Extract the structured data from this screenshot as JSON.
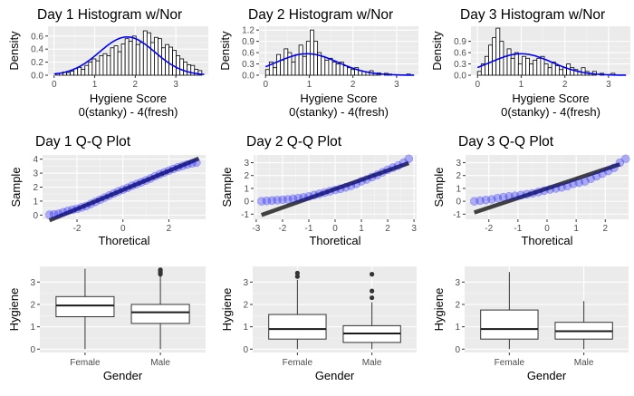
{
  "chart_data": [
    {
      "id": "hist1",
      "type": "bar",
      "title": "Day 1 Histogram w/Nor",
      "xlabel": "Hygiene Score",
      "xlabel2": "0(stanky) - 4(fresh)",
      "ylabel": "Density",
      "xlim": [
        -0.15,
        3.8
      ],
      "ylim": [
        0,
        0.75
      ],
      "xticks": [
        0,
        1,
        2,
        3
      ],
      "yticks": [
        0.0,
        0.2,
        0.4,
        0.6
      ],
      "xticklabels": [
        "0",
        "1",
        "2",
        "3"
      ],
      "yticklabels": [
        "0.0",
        "0.2",
        "0.4",
        "0.6"
      ],
      "bin_start": 0.04,
      "bin_width": 0.09,
      "values": [
        0.03,
        0.03,
        0.05,
        0.04,
        0.06,
        0.1,
        0.12,
        0.09,
        0.15,
        0.2,
        0.25,
        0.22,
        0.3,
        0.33,
        0.3,
        0.42,
        0.45,
        0.36,
        0.48,
        0.56,
        0.52,
        0.6,
        0.47,
        0.5,
        0.68,
        0.65,
        0.5,
        0.58,
        0.56,
        0.42,
        0.47,
        0.43,
        0.38,
        0.3,
        0.25,
        0.2,
        0.16,
        0.15,
        0.09,
        0.07
      ],
      "normal": {
        "mean": 1.8,
        "sd": 0.68
      },
      "curve_color": "#0000ff"
    },
    {
      "id": "hist2",
      "type": "bar",
      "title": "Day 2 Histogram w/Nor",
      "xlabel": "Hygiene Score",
      "xlabel2": "0(stanky) - 4(fresh)",
      "ylabel": "Density",
      "xlim": [
        -0.15,
        3.5
      ],
      "ylim": [
        0,
        1.3
      ],
      "xticks": [
        0,
        1,
        2,
        3
      ],
      "yticks": [
        0.0,
        0.3,
        0.6,
        0.9,
        1.2
      ],
      "xticklabels": [
        "0",
        "1",
        "2",
        "3"
      ],
      "yticklabels": [
        "0.0",
        "0.3",
        "0.6",
        "0.9",
        "1.2"
      ],
      "bin_start": 0.0,
      "bin_width": 0.085,
      "values": [
        0.15,
        0.35,
        0.2,
        0.55,
        0.4,
        0.7,
        0.6,
        0.35,
        0.55,
        0.8,
        0.5,
        0.9,
        1.2,
        0.9,
        0.6,
        0.5,
        0.4,
        0.45,
        0.35,
        0.3,
        0.35,
        0.25,
        0.2,
        0.15,
        0.2,
        0.12,
        0.1,
        0.08,
        0.12,
        0.05,
        0.06,
        0.0,
        0.05,
        0.03,
        0.0,
        0.0,
        0.0,
        0.0,
        0.03,
        0.0
      ],
      "normal": {
        "mean": 0.95,
        "sd": 0.7
      },
      "curve_color": "#0000ff"
    },
    {
      "id": "hist3",
      "type": "bar",
      "title": "Day 3 Histogram w/Nor",
      "xlabel": "Hygiene Score",
      "xlabel2": "0(stanky) - 4(fresh)",
      "ylabel": "Density",
      "xlim": [
        -0.15,
        3.5
      ],
      "ylim": [
        0,
        1.3
      ],
      "xticks": [
        0,
        1,
        2,
        3
      ],
      "yticks": [
        0.0,
        0.3,
        0.6,
        0.9
      ],
      "xticklabels": [
        "0",
        "1",
        "2",
        "3"
      ],
      "yticklabels": [
        "0.0",
        "0.3",
        "0.6",
        "0.9"
      ],
      "bin_start": 0.0,
      "bin_width": 0.085,
      "values": [
        0.1,
        0.3,
        0.5,
        0.8,
        1.0,
        1.25,
        0.9,
        0.5,
        0.7,
        0.45,
        0.6,
        0.3,
        0.5,
        0.45,
        0.3,
        0.4,
        0.45,
        0.5,
        0.3,
        0.2,
        0.35,
        0.25,
        0.15,
        0.2,
        0.3,
        0.2,
        0.15,
        0.1,
        0.2,
        0.1,
        0.05,
        0.1,
        0.0,
        0.05,
        0.0,
        0.0,
        0.05,
        0.0
      ],
      "normal": {
        "mean": 1.0,
        "sd": 0.7
      },
      "curve_color": "#0000ff"
    },
    {
      "id": "qq1",
      "type": "scatter",
      "title": "Day 1 Q-Q Plot",
      "xlabel": "Thoretical",
      "ylabel": "Sample",
      "xlim": [
        -3.5,
        3.6
      ],
      "ylim": [
        -0.3,
        4.3
      ],
      "xticks": [
        -2,
        0,
        2
      ],
      "yticks": [
        0,
        1,
        2,
        3,
        4
      ],
      "xticklabels": [
        "-2",
        "0",
        "2"
      ],
      "yticklabels": [
        "0",
        "1",
        "2",
        "3",
        "4"
      ],
      "line": {
        "intercept": 1.8,
        "slope": 0.68
      },
      "points": [
        [
          -3.2,
          0.02
        ],
        [
          -3.0,
          0.05
        ],
        [
          -2.8,
          0.1
        ],
        [
          -2.6,
          0.2
        ],
        [
          -2.4,
          0.3
        ],
        [
          -2.2,
          0.38
        ],
        [
          -2.0,
          0.45
        ],
        [
          -1.8,
          0.55
        ],
        [
          -1.6,
          0.65
        ],
        [
          -1.4,
          0.8
        ],
        [
          -1.2,
          0.95
        ],
        [
          -1.0,
          1.1
        ],
        [
          -0.8,
          1.25
        ],
        [
          -0.6,
          1.4
        ],
        [
          -0.4,
          1.55
        ],
        [
          -0.2,
          1.7
        ],
        [
          0.0,
          1.82
        ],
        [
          0.2,
          1.95
        ],
        [
          0.4,
          2.1
        ],
        [
          0.6,
          2.22
        ],
        [
          0.8,
          2.35
        ],
        [
          1.0,
          2.48
        ],
        [
          1.2,
          2.62
        ],
        [
          1.4,
          2.78
        ],
        [
          1.6,
          2.92
        ],
        [
          1.8,
          3.05
        ],
        [
          2.0,
          3.18
        ],
        [
          2.2,
          3.3
        ],
        [
          2.4,
          3.42
        ],
        [
          2.6,
          3.52
        ],
        [
          2.8,
          3.62
        ],
        [
          3.0,
          3.7
        ],
        [
          3.2,
          3.75
        ]
      ],
      "point_color": "#0000ff"
    },
    {
      "id": "qq2",
      "type": "scatter",
      "title": "Day 2 Q-Q Plot",
      "xlabel": "Thoretical",
      "ylabel": "Sample",
      "xlim": [
        -3.1,
        3.1
      ],
      "ylim": [
        -1.4,
        3.6
      ],
      "xticks": [
        -3,
        -2,
        -1,
        0,
        1,
        2,
        3
      ],
      "yticks": [
        -1,
        0,
        1,
        2,
        3
      ],
      "xticklabels": [
        "-3",
        "-2",
        "-1",
        "0",
        "1",
        "2",
        "3"
      ],
      "yticklabels": [
        "-1",
        "0",
        "1",
        "2",
        "3"
      ],
      "line": {
        "intercept": 0.95,
        "slope": 0.72
      },
      "points": [
        [
          -2.8,
          0.0
        ],
        [
          -2.6,
          0.03
        ],
        [
          -2.4,
          0.06
        ],
        [
          -2.2,
          0.09
        ],
        [
          -2.0,
          0.12
        ],
        [
          -1.8,
          0.15
        ],
        [
          -1.6,
          0.2
        ],
        [
          -1.4,
          0.25
        ],
        [
          -1.2,
          0.3
        ],
        [
          -1.0,
          0.38
        ],
        [
          -0.8,
          0.48
        ],
        [
          -0.6,
          0.58
        ],
        [
          -0.4,
          0.68
        ],
        [
          -0.2,
          0.78
        ],
        [
          0.0,
          0.88
        ],
        [
          0.2,
          0.97
        ],
        [
          0.4,
          1.08
        ],
        [
          0.6,
          1.2
        ],
        [
          0.8,
          1.35
        ],
        [
          1.0,
          1.55
        ],
        [
          1.2,
          1.7
        ],
        [
          1.4,
          1.88
        ],
        [
          1.6,
          2.05
        ],
        [
          1.8,
          2.25
        ],
        [
          2.0,
          2.45
        ],
        [
          2.2,
          2.62
        ],
        [
          2.4,
          2.78
        ],
        [
          2.6,
          3.0
        ],
        [
          2.8,
          3.3
        ]
      ],
      "point_color": "#0000ff"
    },
    {
      "id": "qq3",
      "type": "scatter",
      "title": "Day 3 Q-Q Plot",
      "xlabel": "Thoretical",
      "ylabel": "Sample",
      "xlim": [
        -2.8,
        2.8
      ],
      "ylim": [
        -1.4,
        3.6
      ],
      "xticks": [
        -2,
        -1,
        0,
        1,
        2
      ],
      "yticks": [
        -1,
        0,
        1,
        2,
        3
      ],
      "xticklabels": [
        "-2",
        "-1",
        "0",
        "1",
        "2"
      ],
      "yticklabels": [
        "-1",
        "0",
        "1",
        "2",
        "3"
      ],
      "line": {
        "intercept": 1.0,
        "slope": 0.75
      },
      "points": [
        [
          -2.5,
          0.0
        ],
        [
          -2.3,
          0.05
        ],
        [
          -2.1,
          0.1
        ],
        [
          -1.9,
          0.15
        ],
        [
          -1.7,
          0.25
        ],
        [
          -1.5,
          0.32
        ],
        [
          -1.3,
          0.38
        ],
        [
          -1.1,
          0.42
        ],
        [
          -0.9,
          0.48
        ],
        [
          -0.7,
          0.55
        ],
        [
          -0.5,
          0.62
        ],
        [
          -0.3,
          0.72
        ],
        [
          -0.1,
          0.82
        ],
        [
          0.1,
          0.92
        ],
        [
          0.3,
          1.0
        ],
        [
          0.5,
          1.08
        ],
        [
          0.7,
          1.18
        ],
        [
          0.9,
          1.35
        ],
        [
          1.1,
          1.45
        ],
        [
          1.3,
          1.55
        ],
        [
          1.5,
          1.75
        ],
        [
          1.7,
          1.95
        ],
        [
          1.9,
          2.15
        ],
        [
          2.1,
          2.35
        ],
        [
          2.3,
          2.6
        ],
        [
          2.5,
          3.0
        ],
        [
          2.7,
          3.3
        ]
      ],
      "point_color": "#0000ff"
    },
    {
      "id": "box1",
      "type": "box",
      "xlabel": "Gender",
      "ylabel": "Hygiene",
      "ylim": [
        -0.15,
        3.7
      ],
      "yticks": [
        0,
        1,
        2,
        3
      ],
      "yticklabels": [
        "0",
        "1",
        "2",
        "3"
      ],
      "categories": [
        "Female",
        "Male"
      ],
      "boxes": [
        {
          "min": 0.0,
          "q1": 1.45,
          "median": 1.95,
          "q3": 2.35,
          "max": 3.6,
          "outliers": []
        },
        {
          "min": 0.0,
          "q1": 1.15,
          "median": 1.65,
          "q3": 2.0,
          "max": 3.3,
          "outliers": [
            3.35,
            3.42,
            3.5,
            3.55
          ]
        }
      ]
    },
    {
      "id": "box2",
      "type": "box",
      "xlabel": "Gender",
      "ylabel": "Hygiene",
      "ylim": [
        -0.15,
        3.7
      ],
      "yticks": [
        0,
        1,
        2,
        3
      ],
      "yticklabels": [
        "0",
        "1",
        "2",
        "3"
      ],
      "categories": [
        "Female",
        "Male"
      ],
      "boxes": [
        {
          "min": 0.0,
          "q1": 0.45,
          "median": 0.9,
          "q3": 1.55,
          "max": 3.1,
          "outliers": [
            3.25,
            3.4
          ]
        },
        {
          "min": 0.0,
          "q1": 0.3,
          "median": 0.7,
          "q3": 1.05,
          "max": 2.1,
          "outliers": [
            2.3,
            2.6,
            3.35
          ]
        }
      ]
    },
    {
      "id": "box3",
      "type": "box",
      "xlabel": "Gender",
      "ylabel": "Hygiene",
      "ylim": [
        -0.15,
        3.7
      ],
      "yticks": [
        0,
        1,
        2,
        3
      ],
      "yticklabels": [
        "0",
        "1",
        "2",
        "3"
      ],
      "categories": [
        "Female",
        "Male"
      ],
      "boxes": [
        {
          "min": 0.0,
          "q1": 0.45,
          "median": 0.9,
          "q3": 1.75,
          "max": 3.45,
          "outliers": []
        },
        {
          "min": 0.0,
          "q1": 0.45,
          "median": 0.8,
          "q3": 1.2,
          "max": 2.15,
          "outliers": []
        }
      ]
    }
  ]
}
